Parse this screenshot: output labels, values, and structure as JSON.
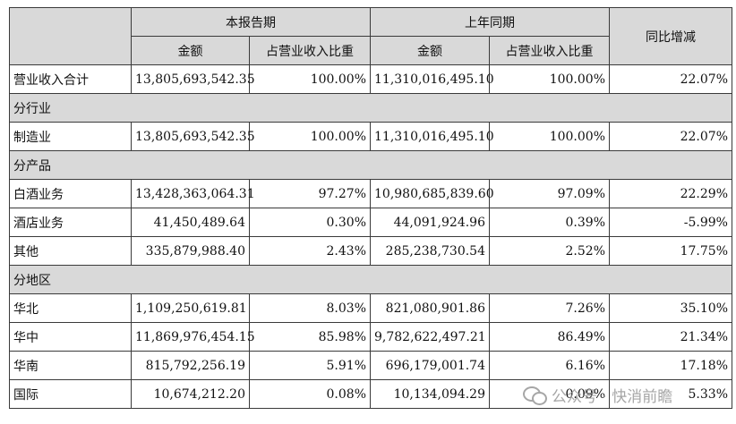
{
  "header": {
    "current_period": "本报告期",
    "prior_period": "上年同期",
    "yoy_change": "同比增减",
    "amount": "金额",
    "share": "占营业收入比重"
  },
  "rows": [
    {
      "type": "data",
      "label": "营业收入合计",
      "cur_amount": "13,805,693,542.35",
      "cur_share": "100.00%",
      "prev_amount": "11,310,016,495.10",
      "prev_share": "100.00%",
      "yoy": "22.07%"
    },
    {
      "type": "section",
      "label": "分行业"
    },
    {
      "type": "data",
      "label": "制造业",
      "cur_amount": "13,805,693,542.35",
      "cur_share": "100.00%",
      "prev_amount": "11,310,016,495.10",
      "prev_share": "100.00%",
      "yoy": "22.07%"
    },
    {
      "type": "section",
      "label": "分产品"
    },
    {
      "type": "data",
      "label": "白酒业务",
      "cur_amount": "13,428,363,064.31",
      "cur_share": "97.27%",
      "prev_amount": "10,980,685,839.60",
      "prev_share": "97.09%",
      "yoy": "22.29%"
    },
    {
      "type": "data",
      "label": "酒店业务",
      "cur_amount": "41,450,489.64",
      "cur_share": "0.30%",
      "prev_amount": "44,091,924.96",
      "prev_share": "0.39%",
      "yoy": "-5.99%"
    },
    {
      "type": "data",
      "label": "其他",
      "cur_amount": "335,879,988.40",
      "cur_share": "2.43%",
      "prev_amount": "285,238,730.54",
      "prev_share": "2.52%",
      "yoy": "17.75%"
    },
    {
      "type": "section",
      "label": "分地区"
    },
    {
      "type": "data",
      "label": "华北",
      "cur_amount": "1,109,250,619.81",
      "cur_share": "8.03%",
      "prev_amount": "821,080,901.86",
      "prev_share": "7.26%",
      "yoy": "35.10%"
    },
    {
      "type": "data",
      "label": "华中",
      "cur_amount": "11,869,976,454.15",
      "cur_share": "85.98%",
      "prev_amount": "9,782,622,497.21",
      "prev_share": "86.49%",
      "yoy": "21.34%"
    },
    {
      "type": "data",
      "label": "华南",
      "cur_amount": "815,792,256.19",
      "cur_share": "5.91%",
      "prev_amount": "696,179,001.74",
      "prev_share": "6.16%",
      "yoy": "17.18%"
    },
    {
      "type": "data",
      "label": "国际",
      "cur_amount": "10,674,212.20",
      "cur_share": "0.08%",
      "prev_amount": "10,134,094.29",
      "prev_share": "0.09%",
      "yoy": "5.33%"
    }
  ],
  "watermark": {
    "text": "公众号 · 快消前瞻",
    "icon": "wechat-logo-icon"
  }
}
